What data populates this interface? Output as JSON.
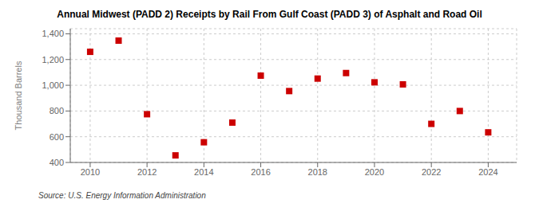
{
  "chart_data": {
    "type": "scatter",
    "title": "Annual Midwest (PADD 2) Receipts by Rail From Gulf Coast (PADD 3) of Asphalt and Road Oil",
    "y_label": "Thousand Barrels",
    "annotations": [
      "Source: U.S. Energy Information Administration"
    ],
    "x": [
      2010,
      2011,
      2012,
      2013,
      2014,
      2015,
      2016,
      2017,
      2018,
      2019,
      2020,
      2021,
      2022,
      2023,
      2024
    ],
    "values": [
      1260,
      1347,
      775,
      455,
      557,
      710,
      1075,
      955,
      1052,
      1095,
      1023,
      1007,
      700,
      800,
      634
    ],
    "color": "#cc0000",
    "marker": "square",
    "xlim": [
      2009.3,
      2025.0
    ],
    "ylim": [
      400,
      1440
    ],
    "xticks": [
      2010,
      2012,
      2014,
      2016,
      2018,
      2020,
      2022,
      2024
    ],
    "yticks": [
      400,
      600,
      800,
      {
        "value": 1000,
        "label": "1,000"
      },
      {
        "value": 1200,
        "label": "1,200"
      },
      {
        "value": 1400,
        "label": "1,400"
      }
    ],
    "grid": true
  }
}
